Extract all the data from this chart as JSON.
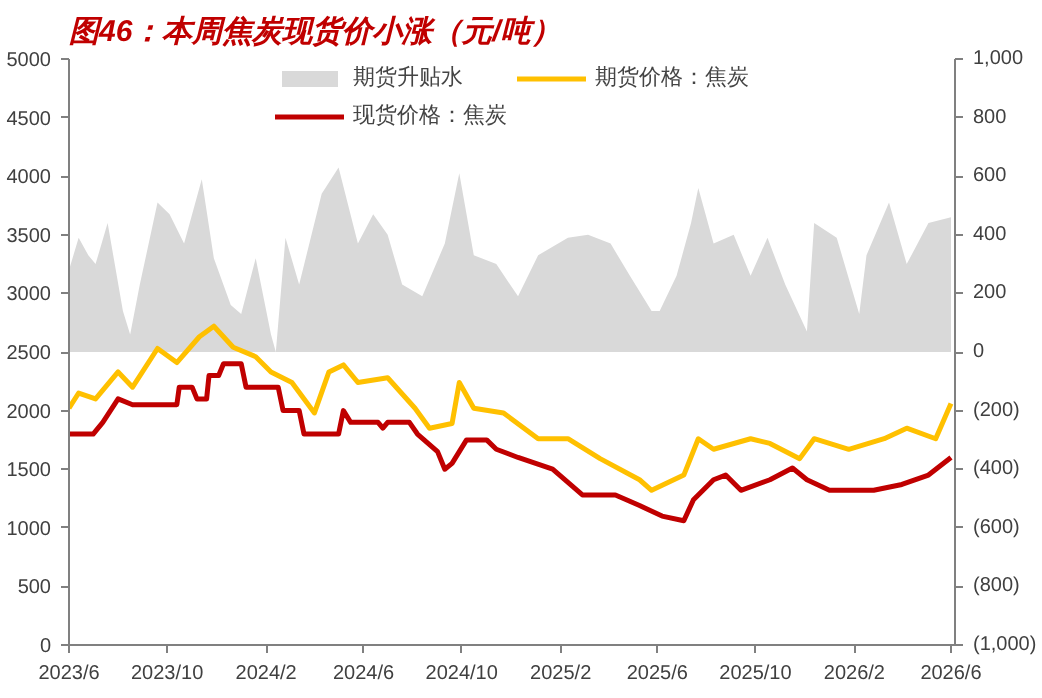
{
  "chart_data": {
    "type": "line",
    "title": "图46：本周焦炭现货价小涨（元/吨）",
    "legend": "top",
    "grid": false,
    "xlim": [
      "2023-06-01",
      "2026-06-06"
    ],
    "xticks": [
      {
        "value": "2023-06-01",
        "label": "2023/6"
      },
      {
        "value": "2023-10-01",
        "label": "2023/10"
      },
      {
        "value": "2024-02-01",
        "label": "2024/2"
      },
      {
        "value": "2024-06-01",
        "label": "2024/6"
      },
      {
        "value": "2024-10-01",
        "label": "2024/10"
      },
      {
        "value": "2025-02-01",
        "label": "2025/2"
      },
      {
        "value": "2025-06-01",
        "label": "2025/6"
      },
      {
        "value": "2025-10-01",
        "label": "2025/10"
      },
      {
        "value": "2026-02-01",
        "label": "2026/2"
      },
      {
        "value": "2026-06-01",
        "label": "2026/6"
      }
    ],
    "ylim": [
      0,
      5000
    ],
    "yticks": [
      0,
      500,
      1000,
      1500,
      2000,
      2500,
      3000,
      3500,
      4000,
      4500,
      5000
    ],
    "y2lim": [
      -1000,
      1000
    ],
    "y2ticks": [
      {
        "value": -1000,
        "label": "(1,000)"
      },
      {
        "value": -800,
        "label": "(800)"
      },
      {
        "value": -600,
        "label": "(600)"
      },
      {
        "value": -400,
        "label": "(400)"
      },
      {
        "value": -200,
        "label": "(200)"
      },
      0,
      200,
      400,
      600,
      800,
      {
        "value": 1000,
        "label": "1,000"
      }
    ],
    "series": [
      {
        "name": "期货升贴水",
        "type": "area",
        "axis": "y2",
        "color": "#d9d9d9",
        "x": [
          "2023-06-01",
          "2023-06-13",
          "2023-06-25",
          "2023-07-04",
          "2023-07-19",
          "2023-08-07",
          "2023-08-16",
          "2023-08-28",
          "2023-09-19",
          "2023-10-04",
          "2023-10-22",
          "2023-11-13",
          "2023-11-28",
          "2023-12-19",
          "2024-01-01",
          "2024-01-19",
          "2024-02-07",
          "2024-02-13",
          "2024-02-25",
          "2024-03-13",
          "2024-04-10",
          "2024-05-01",
          "2024-05-25",
          "2024-06-13",
          "2024-07-01",
          "2024-07-19",
          "2024-08-13",
          "2024-09-10",
          "2024-09-28",
          "2024-10-16",
          "2024-11-13",
          "2024-12-10",
          "2025-01-04",
          "2025-02-10",
          "2025-03-07",
          "2025-04-04",
          "2025-04-28",
          "2025-05-25",
          "2025-06-04",
          "2025-06-25",
          "2025-07-13",
          "2025-07-22",
          "2025-08-10",
          "2025-09-04",
          "2025-09-25",
          "2025-10-16",
          "2025-11-07",
          "2025-12-04",
          "2025-12-13",
          "2026-01-10",
          "2026-02-07",
          "2026-02-16",
          "2026-03-16",
          "2026-04-07",
          "2026-05-04",
          "2026-06-01"
        ],
        "values": [
          280,
          390,
          330,
          300,
          440,
          140,
          60,
          230,
          510,
          470,
          370,
          590,
          320,
          160,
          130,
          320,
          60,
          0,
          390,
          230,
          540,
          630,
          370,
          470,
          400,
          230,
          190,
          370,
          610,
          330,
          300,
          190,
          330,
          390,
          400,
          370,
          260,
          140,
          140,
          260,
          440,
          560,
          370,
          400,
          260,
          390,
          230,
          70,
          440,
          390,
          130,
          330,
          510,
          300,
          440,
          460
        ]
      },
      {
        "name": "期货价格：焦炭",
        "axis": "y",
        "color": "#ffc000",
        "x": [
          "2023-06-01",
          "2023-06-13",
          "2023-07-04",
          "2023-08-01",
          "2023-08-19",
          "2023-09-19",
          "2023-10-13",
          "2023-11-10",
          "2023-11-28",
          "2023-12-22",
          "2024-01-19",
          "2024-02-07",
          "2024-03-04",
          "2024-04-01",
          "2024-04-19",
          "2024-05-07",
          "2024-05-25",
          "2024-07-01",
          "2024-08-04",
          "2024-08-22",
          "2024-09-19",
          "2024-09-28",
          "2024-10-16",
          "2024-11-22",
          "2025-01-04",
          "2025-02-10",
          "2025-03-22",
          "2025-05-10",
          "2025-05-25",
          "2025-07-04",
          "2025-07-22",
          "2025-08-10",
          "2025-09-25",
          "2025-10-19",
          "2025-11-25",
          "2025-12-13",
          "2026-01-25",
          "2026-03-10",
          "2026-04-07",
          "2026-05-13",
          "2026-06-01"
        ],
        "values": [
          2020,
          2150,
          2100,
          2330,
          2200,
          2530,
          2410,
          2630,
          2720,
          2540,
          2460,
          2330,
          2240,
          1980,
          2330,
          2390,
          2240,
          2280,
          2020,
          1850,
          1890,
          2240,
          2020,
          1980,
          1760,
          1760,
          1590,
          1410,
          1320,
          1450,
          1760,
          1670,
          1760,
          1720,
          1590,
          1760,
          1670,
          1760,
          1850,
          1760,
          2060
        ]
      },
      {
        "name": "现货价格：焦炭",
        "axis": "y",
        "color": "#c00000",
        "x": [
          "2023-06-01",
          "2023-07-01",
          "2023-07-13",
          "2023-08-01",
          "2023-08-19",
          "2023-10-13",
          "2023-10-16",
          "2023-11-01",
          "2023-11-07",
          "2023-11-19",
          "2023-11-22",
          "2023-12-04",
          "2023-12-10",
          "2024-01-01",
          "2024-01-07",
          "2024-02-16",
          "2024-02-22",
          "2024-03-13",
          "2024-03-19",
          "2024-05-01",
          "2024-05-07",
          "2024-05-16",
          "2024-06-19",
          "2024-06-25",
          "2024-07-01",
          "2024-07-28",
          "2024-08-07",
          "2024-09-01",
          "2024-09-10",
          "2024-09-19",
          "2024-10-07",
          "2024-11-01",
          "2024-11-13",
          "2024-12-10",
          "2025-01-22",
          "2025-02-28",
          "2025-04-10",
          "2025-05-10",
          "2025-06-07",
          "2025-07-04",
          "2025-07-16",
          "2025-08-10",
          "2025-08-25",
          "2025-09-13",
          "2025-10-19",
          "2025-11-16",
          "2025-12-04",
          "2026-01-01",
          "2026-02-25",
          "2026-04-01",
          "2026-05-04",
          "2026-06-01"
        ],
        "values": [
          1800,
          1800,
          1900,
          2100,
          2050,
          2050,
          2200,
          2200,
          2100,
          2100,
          2300,
          2300,
          2400,
          2400,
          2200,
          2200,
          2000,
          2000,
          1800,
          1800,
          2000,
          1900,
          1900,
          1850,
          1900,
          1900,
          1800,
          1650,
          1500,
          1550,
          1750,
          1750,
          1670,
          1600,
          1500,
          1280,
          1280,
          1190,
          1100,
          1060,
          1240,
          1410,
          1450,
          1320,
          1410,
          1510,
          1410,
          1320,
          1320,
          1370,
          1450,
          1600
        ]
      }
    ]
  }
}
